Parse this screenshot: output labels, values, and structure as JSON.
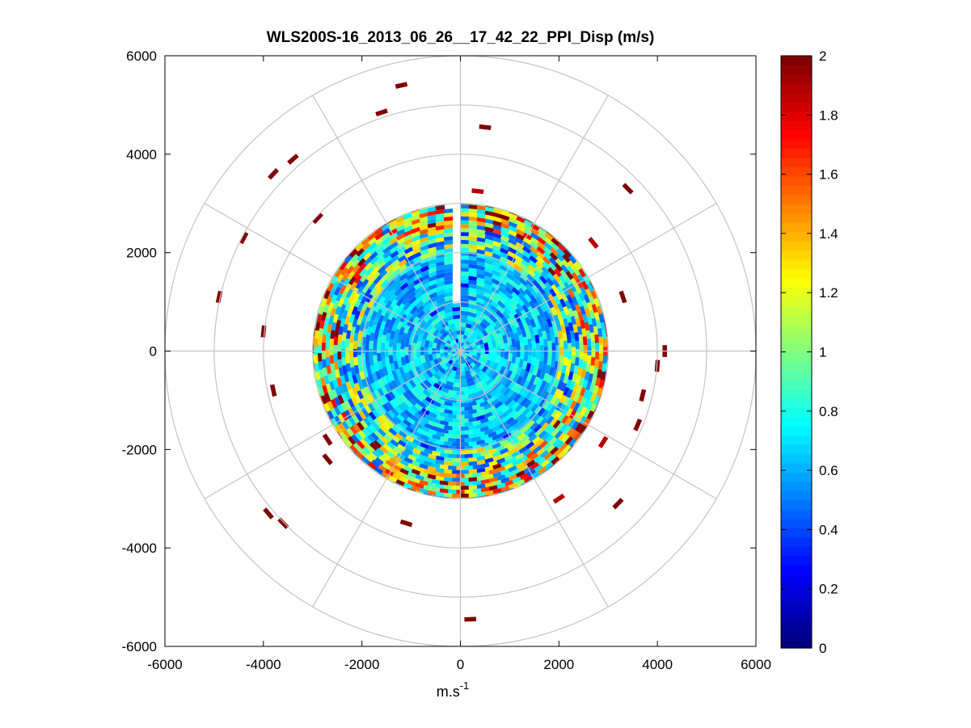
{
  "chart_data": {
    "type": "heatmap",
    "subtype": "polar-ppi",
    "title": "WLS200S-16_2013_06_26__17_42_22_PPI_Disp (m/s)",
    "xlabel_base": "m.s",
    "xlabel_exp": "-1",
    "ylabel": "",
    "xlim": [
      -6000,
      6000
    ],
    "ylim": [
      -6000,
      6000
    ],
    "xticks": [
      "-6000",
      "-4000",
      "-2000",
      "0",
      "2000",
      "4000",
      "6000"
    ],
    "yticks": [
      "6000",
      "4000",
      "2000",
      "0",
      "-2000",
      "-4000",
      "-6000"
    ],
    "polar_rings": [
      1000,
      2000,
      3000,
      4000,
      5000,
      6000
    ],
    "polar_spokes_deg": [
      0,
      30,
      60,
      90,
      120,
      150,
      180,
      210,
      240,
      270,
      300,
      330
    ],
    "grid": true,
    "colormap": "jet",
    "colorbar": {
      "min": 0,
      "max": 2,
      "ticks": [
        "0",
        "0.2",
        "0.4",
        "0.6",
        "0.8",
        "1",
        "1.2",
        "1.4",
        "1.6",
        "1.8",
        "2"
      ],
      "placement": "right"
    },
    "data_extent_m": 3000,
    "gap_sector_deg": [
      -5,
      0
    ],
    "value_structure": [
      {
        "range_m": [
          0,
          2000
        ],
        "typical_value": 0.65
      },
      {
        "range_m": [
          2000,
          2500
        ],
        "typical_value": 0.85
      },
      {
        "range_m": [
          2500,
          3000
        ],
        "typical_value": 1.1
      }
    ],
    "outer_returns": [
      {
        "x": -1200,
        "y": 5400,
        "value": 2.0
      },
      {
        "x": -1600,
        "y": 4850,
        "value": 2.0
      },
      {
        "x": 500,
        "y": 4550,
        "value": 2.0
      },
      {
        "x": -3400,
        "y": 3900,
        "value": 2.0
      },
      {
        "x": -3800,
        "y": 3600,
        "value": 2.0
      },
      {
        "x": 3400,
        "y": 3300,
        "value": 2.0
      },
      {
        "x": -4400,
        "y": 2300,
        "value": 2.0
      },
      {
        "x": -2900,
        "y": 2700,
        "value": 2.0
      },
      {
        "x": 2700,
        "y": 2200,
        "value": 1.9
      },
      {
        "x": -4900,
        "y": 1100,
        "value": 2.0
      },
      {
        "x": 3300,
        "y": 1100,
        "value": 2.0
      },
      {
        "x": -4000,
        "y": 400,
        "value": 2.0
      },
      {
        "x": 4150,
        "y": 0,
        "value": 2.0
      },
      {
        "x": 4000,
        "y": -300,
        "value": 2.0
      },
      {
        "x": -3800,
        "y": -800,
        "value": 2.0
      },
      {
        "x": 3700,
        "y": -900,
        "value": 2.0
      },
      {
        "x": 3600,
        "y": -1500,
        "value": 2.0
      },
      {
        "x": -2700,
        "y": -1800,
        "value": 2.0
      },
      {
        "x": 2900,
        "y": -1850,
        "value": 1.9
      },
      {
        "x": -2700,
        "y": -2200,
        "value": 2.0
      },
      {
        "x": 3200,
        "y": -3100,
        "value": 2.0
      },
      {
        "x": -3900,
        "y": -3300,
        "value": 2.0
      },
      {
        "x": -3600,
        "y": -3500,
        "value": 2.0
      },
      {
        "x": 2000,
        "y": -3000,
        "value": 1.9
      },
      {
        "x": -1100,
        "y": -3500,
        "value": 2.0
      },
      {
        "x": 200,
        "y": -5450,
        "value": 2.0
      },
      {
        "x": 350,
        "y": 3250,
        "value": 1.9
      }
    ]
  }
}
